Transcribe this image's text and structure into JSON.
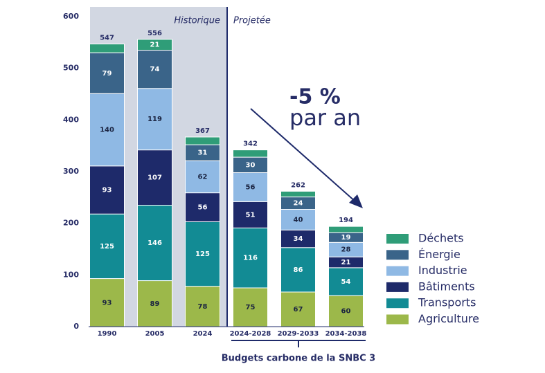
{
  "chart_data": {
    "type": "stacked_bar",
    "categories": [
      "1990",
      "2005",
      "2024",
      "2024-2028",
      "2029-2033",
      "2034-2038"
    ],
    "series": [
      {
        "name": "Agriculture",
        "color": "#9cb84a",
        "values": [
          93,
          89,
          78,
          75,
          67,
          60
        ]
      },
      {
        "name": "Transports",
        "color": "#128b94",
        "values": [
          125,
          146,
          125,
          116,
          86,
          54
        ]
      },
      {
        "name": "Bâtiments",
        "color": "#1e2a6a",
        "values": [
          93,
          107,
          56,
          51,
          34,
          21
        ]
      },
      {
        "name": "Industrie",
        "color": "#8fb9e4",
        "values": [
          140,
          119,
          62,
          56,
          40,
          28
        ]
      },
      {
        "name": "Énergie",
        "color": "#3a6489",
        "values": [
          79,
          74,
          31,
          30,
          24,
          19
        ]
      },
      {
        "name": "Déchets",
        "color": "#2f9d78",
        "values": [
          17,
          21,
          15,
          14,
          11,
          12
        ],
        "value_labels": [
          null,
          "21",
          null,
          null,
          null,
          null
        ]
      }
    ],
    "totals": [
      547,
      556,
      367,
      342,
      262,
      194
    ],
    "ylim": [
      0,
      600
    ],
    "yticks": [
      0,
      100,
      200,
      300,
      400,
      500,
      600
    ],
    "annotations": {
      "historic": "Historique",
      "projected": "Projetée",
      "rate": "-5 %",
      "rate_unit": "par an",
      "bracket": "Budgets carbone de la SNBC 3"
    }
  }
}
